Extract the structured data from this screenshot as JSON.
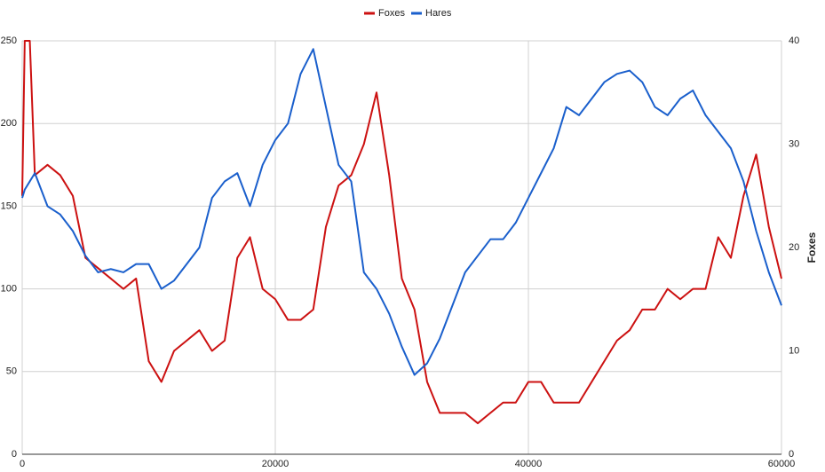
{
  "chart_data": {
    "type": "line",
    "x": [
      0,
      200,
      600,
      1000,
      2000,
      3000,
      4000,
      5000,
      6000,
      7000,
      8000,
      9000,
      10000,
      11000,
      12000,
      13000,
      14000,
      15000,
      16000,
      17000,
      18000,
      19000,
      20000,
      21000,
      22000,
      23000,
      24000,
      25000,
      26000,
      27000,
      28000,
      29000,
      30000,
      31000,
      32000,
      33000,
      34000,
      35000,
      36000,
      37000,
      38000,
      39000,
      40000,
      41000,
      42000,
      43000,
      44000,
      45000,
      46000,
      47000,
      48000,
      49000,
      50000,
      51000,
      52000,
      53000,
      54000,
      55000,
      56000,
      57000,
      58000,
      59000,
      60000
    ],
    "series": [
      {
        "name": "Foxes",
        "color": "#cc1111",
        "axis": "y2",
        "values": [
          25,
          40,
          40,
          27,
          28,
          27,
          25,
          19,
          18,
          17,
          16,
          17,
          9,
          7,
          10,
          11,
          12,
          10,
          11,
          19,
          21,
          16,
          15,
          13,
          13,
          14,
          22,
          26,
          27,
          30,
          35,
          27,
          17,
          14,
          7,
          4,
          4,
          4,
          3,
          4,
          5,
          5,
          7,
          7,
          5,
          5,
          5,
          7,
          9,
          11,
          12,
          14,
          14,
          16,
          15,
          16,
          16,
          21,
          19,
          25,
          29,
          22,
          17
        ]
      },
      {
        "name": "Hares",
        "color": "#1a5fcc",
        "values": [
          155,
          160,
          165,
          170,
          150,
          145,
          135,
          120,
          110,
          112,
          110,
          115,
          115,
          100,
          105,
          115,
          125,
          155,
          165,
          170,
          150,
          175,
          190,
          200,
          230,
          245,
          210,
          175,
          165,
          110,
          100,
          85,
          65,
          48,
          55,
          70,
          90,
          110,
          120,
          130,
          130,
          140,
          155,
          170,
          185,
          210,
          205,
          215,
          225,
          230,
          232,
          225,
          210,
          205,
          215,
          220,
          205,
          195,
          185,
          165,
          135,
          110,
          90
        ]
      }
    ],
    "xlim": [
      0,
      60000
    ],
    "xticks": [
      0,
      20000,
      40000,
      60000
    ],
    "ylim": [
      0,
      250
    ],
    "yticks": [
      0,
      50,
      100,
      150,
      200,
      250
    ],
    "y2lim": [
      0,
      40
    ],
    "y2ticks": [
      0,
      10,
      20,
      30,
      40
    ],
    "y2label": "Foxes",
    "grid": true,
    "legend": "top"
  }
}
